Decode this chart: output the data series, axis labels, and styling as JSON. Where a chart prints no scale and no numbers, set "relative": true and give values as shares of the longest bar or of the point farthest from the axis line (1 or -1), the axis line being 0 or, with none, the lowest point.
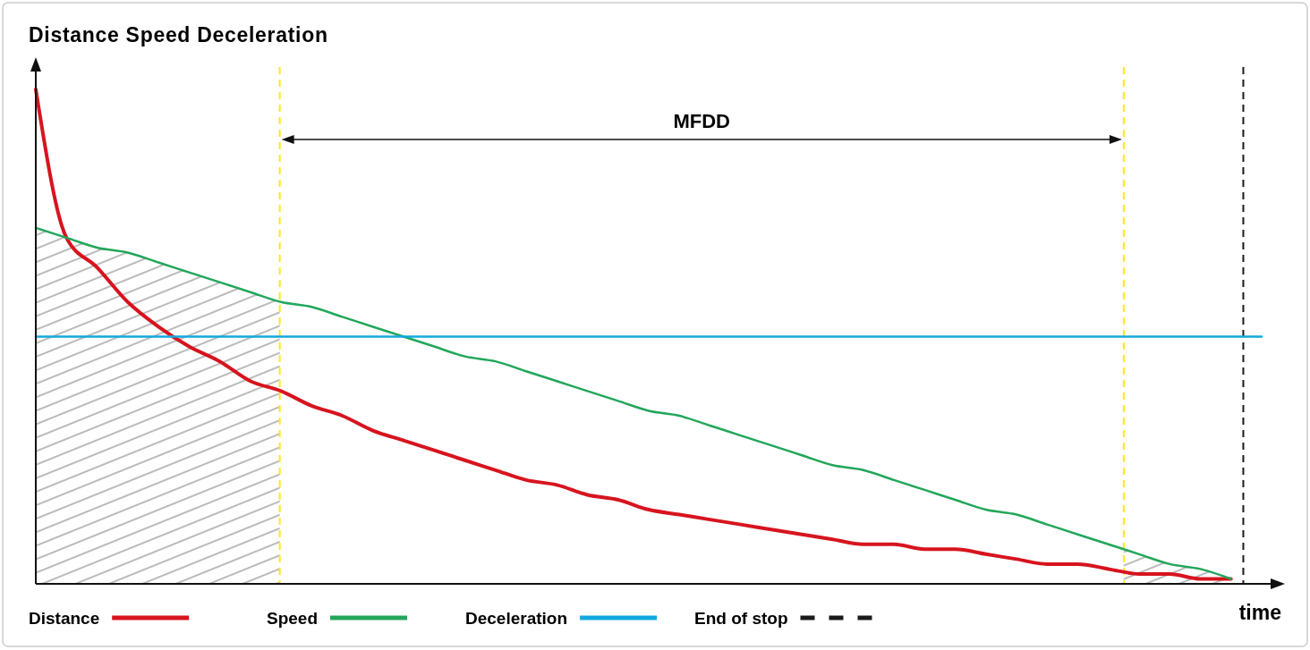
{
  "chart_data": {
    "type": "line",
    "title": "Distance Speed Deceleration",
    "xlabel": "time",
    "relative": true,
    "tick_labels": false,
    "legend": "bottom",
    "categories": [
      null,
      null,
      null,
      null,
      null,
      null,
      null,
      null,
      null,
      null,
      null,
      null,
      null,
      null,
      null,
      null,
      null,
      null,
      null,
      null,
      null,
      null,
      null,
      null,
      null,
      null,
      null,
      null,
      null,
      null,
      null,
      null,
      null,
      null,
      null,
      null,
      null,
      null,
      null,
      null,
      null
    ],
    "series": [
      {
        "name": "Distance",
        "color": "#d7141e",
        "values": [
          1,
          0.7,
          0.64,
          0.57,
          0.52,
          0.48,
          0.45,
          0.41,
          0.39,
          0.36,
          0.34,
          0.31,
          0.29,
          0.27,
          0.25,
          0.23,
          0.21,
          0.2,
          0.18,
          0.17,
          0.15,
          0.14,
          0.13,
          0.12,
          0.11,
          0.1,
          0.09,
          0.08,
          0.08,
          0.07,
          0.07,
          0.06,
          0.05,
          0.04,
          0.04,
          0.03,
          0.02,
          0.02,
          0.01,
          0.01,
          null
        ]
      },
      {
        "name": "Speed",
        "color": "#22a65a",
        "values": [
          0.72,
          0.7,
          0.68,
          0.67,
          0.65,
          0.63,
          0.61,
          0.59,
          0.57,
          0.56,
          0.54,
          0.52,
          0.5,
          0.48,
          0.46,
          0.45,
          0.43,
          0.41,
          0.39,
          0.37,
          0.35,
          0.34,
          0.32,
          0.3,
          0.28,
          0.26,
          0.24,
          0.23,
          0.21,
          0.19,
          0.17,
          0.15,
          0.14,
          0.12,
          0.1,
          0.08,
          0.06,
          0.04,
          0.03,
          0.01,
          null
        ]
      },
      {
        "name": "Deceleration",
        "color": "#12a9df",
        "values": [
          0.5,
          0.5,
          0.5,
          0.5,
          0.5,
          0.5,
          0.5,
          0.5,
          0.5,
          0.5,
          0.5,
          0.5,
          0.5,
          0.5,
          0.5,
          0.5,
          0.5,
          0.5,
          0.5,
          0.5,
          0.5,
          0.5,
          0.5,
          0.5,
          0.5,
          0.5,
          0.5,
          0.5,
          0.5,
          0.5,
          0.5,
          0.5,
          0.5,
          0.5,
          0.5,
          0.5,
          0.5,
          0.5,
          0.5,
          0.5,
          0.5
        ]
      },
      {
        "name": "End of stop",
        "color": "#1a1a1a",
        "line_style": "dashed",
        "values": [
          null,
          null,
          null,
          null,
          null,
          null,
          null,
          null,
          null,
          null,
          null,
          null,
          null,
          null,
          null,
          null,
          null,
          null,
          null,
          null,
          null,
          null,
          null,
          null,
          null,
          null,
          null,
          null,
          null,
          null,
          null,
          null,
          null,
          null,
          null,
          null,
          null,
          null,
          null,
          null,
          null
        ]
      }
    ],
    "annotations": [
      "MFDD"
    ]
  }
}
